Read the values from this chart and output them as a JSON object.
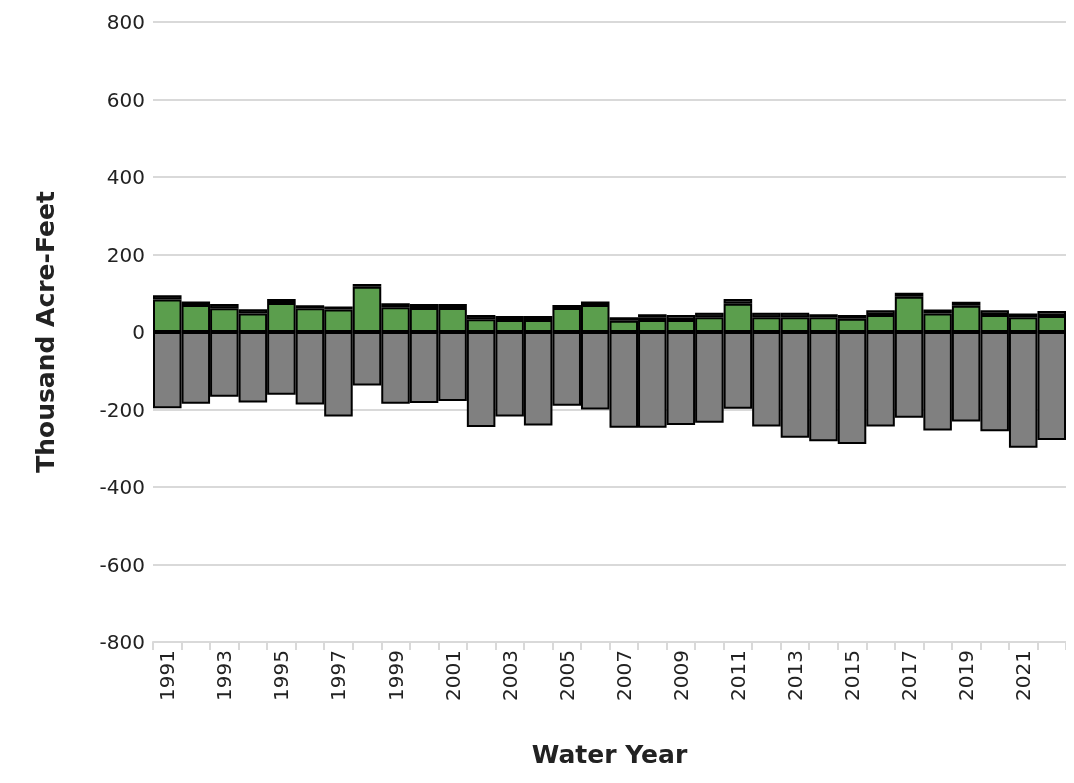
{
  "chart_data": {
    "type": "bar",
    "stacked": true,
    "xlabel": "Water Year",
    "ylabel": "Thousand Acre-Feet",
    "categories": [
      "1991",
      null,
      "1993",
      null,
      "1995",
      null,
      "1997",
      null,
      "1999",
      null,
      "2001",
      null,
      "2003",
      null,
      "2005",
      null,
      "2007",
      null,
      "2009",
      null,
      "2011",
      null,
      "2013",
      null,
      "2015",
      null,
      "2017",
      null,
      "2019",
      null,
      "2021",
      null
    ],
    "series": [
      {
        "color": "#5b9e4d",
        "values": [
          84,
          70,
          61,
          48,
          75,
          61,
          58,
          117,
          64,
          62,
          62,
          33,
          31,
          31,
          62,
          70,
          29,
          31,
          31,
          38,
          73,
          38,
          38,
          38,
          34,
          44,
          91,
          48,
          68,
          44,
          38,
          41
        ]
      },
      {
        "color": "#7030a0",
        "values": [
          null,
          null,
          null,
          null,
          null,
          null,
          null,
          null,
          null,
          null,
          null,
          null,
          null,
          null,
          null,
          null,
          null,
          7,
          null,
          null,
          null,
          null,
          null,
          null,
          null,
          null,
          null,
          null,
          null,
          null,
          null,
          null
        ]
      },
      {
        "color": "#404040",
        "values": [
          11,
          9,
          11,
          11,
          10,
          8,
          8,
          7,
          10,
          10,
          10,
          11,
          10,
          10,
          8,
          9,
          9,
          8,
          13,
          12,
          12,
          12,
          12,
          8,
          10,
          12,
          10,
          10,
          10,
          12,
          10,
          13
        ]
      },
      {
        "color": "#808080",
        "values": [
          -197,
          -185,
          -167,
          -182,
          -162,
          -187,
          -218,
          -138,
          -185,
          -183,
          -178,
          -245,
          -218,
          -241,
          -190,
          -200,
          -247,
          -247,
          -240,
          -234,
          -198,
          -244,
          -273,
          -282,
          -289,
          -244,
          -221,
          -254,
          -231,
          -256,
          -299,
          -279
        ]
      }
    ],
    "ylim": [
      -800,
      800
    ],
    "yticks": [
      -800,
      -600,
      -400,
      -200,
      0,
      200,
      400,
      600,
      800
    ],
    "grid": "y"
  }
}
